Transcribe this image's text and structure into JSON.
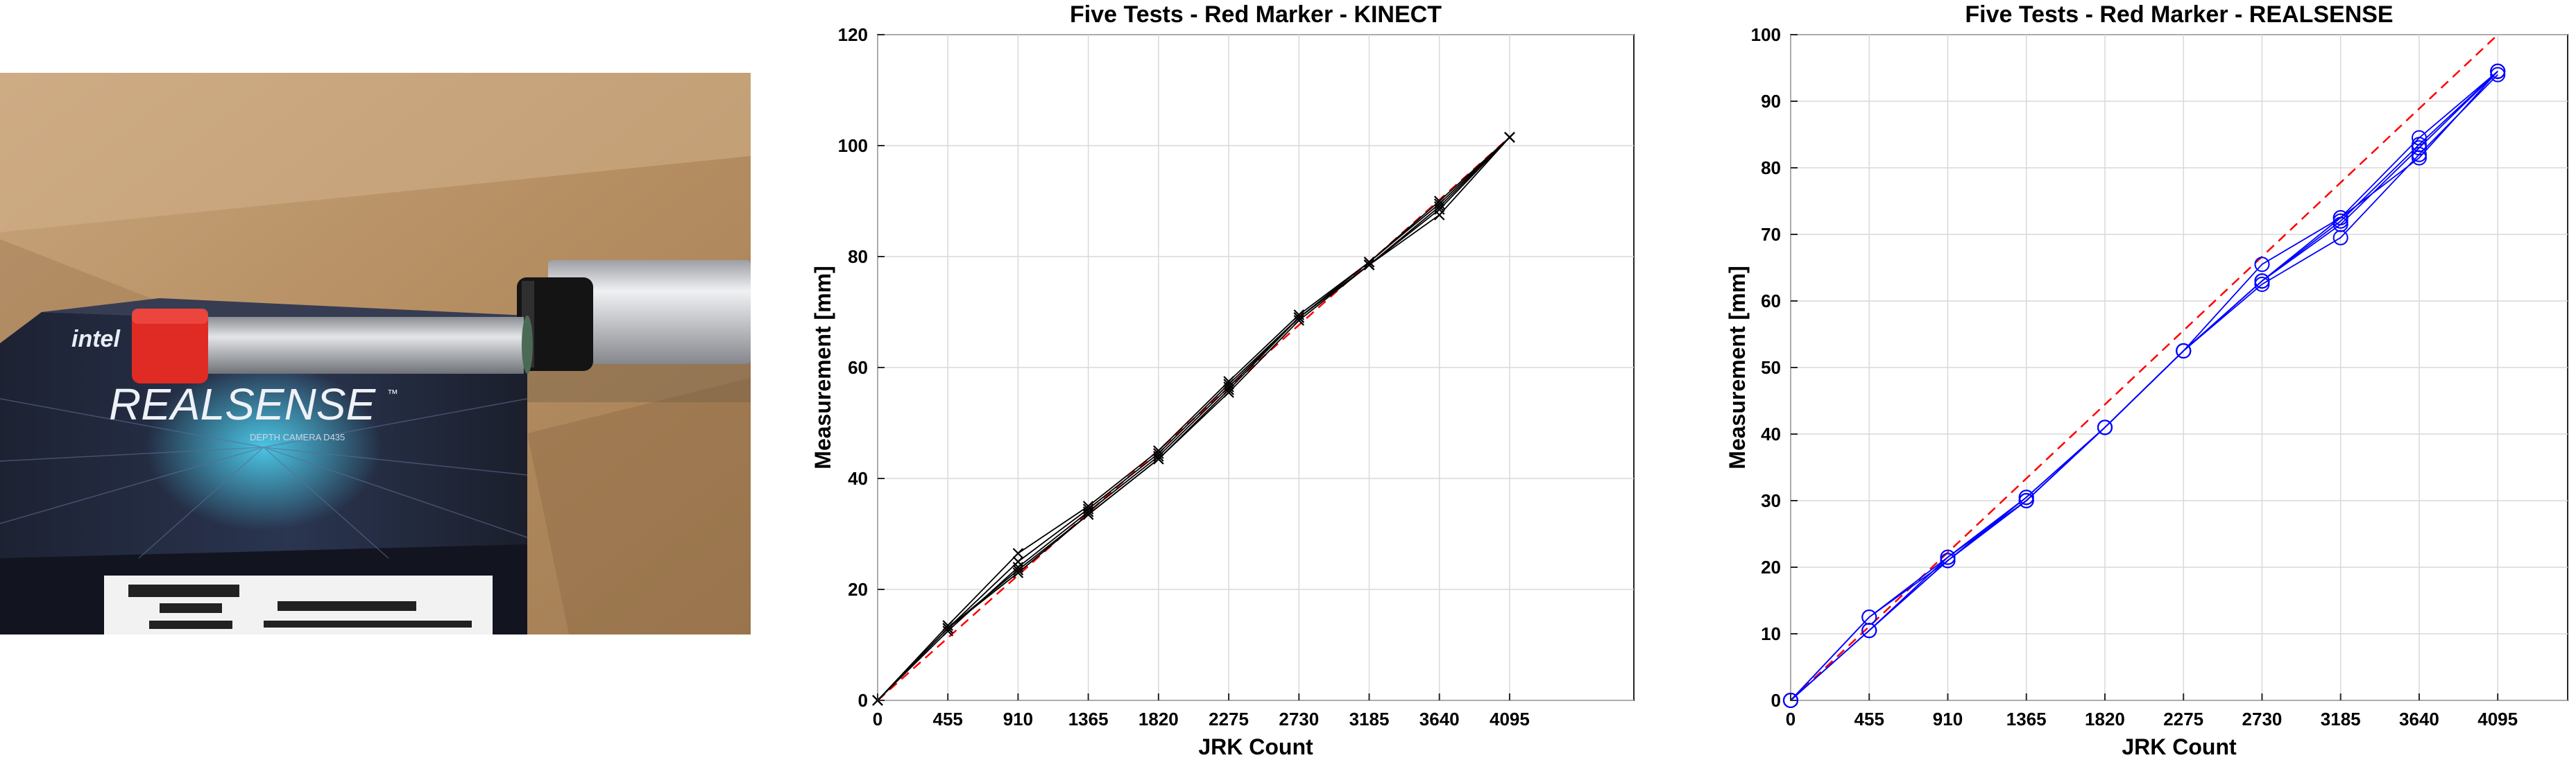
{
  "photo": {
    "brand_logo_text": "intel",
    "product_name": "REALSENSE",
    "product_trademark": "™",
    "product_subtitle": "DEPTH CAMERA D435"
  },
  "colors": {
    "kinect_series": "#000000",
    "realsense_series": "#0000ff",
    "reference_line": "#ff0000",
    "grid": "#d9d9d9",
    "axes": "#262626"
  },
  "chart_data": [
    {
      "type": "line",
      "title": "Five Tests - Red Marker - KINECT",
      "xlabel": "JRK Count",
      "ylabel": "Measurement [mm]",
      "xlim": [
        0,
        4900
      ],
      "ylim": [
        0,
        120
      ],
      "xticks": [
        0,
        455,
        910,
        1365,
        1820,
        2275,
        2730,
        3185,
        3640,
        4095
      ],
      "yticks": [
        0,
        20,
        40,
        60,
        80,
        100,
        120
      ],
      "grid": true,
      "marker": "x",
      "x": [
        0,
        455,
        910,
        1365,
        1820,
        2275,
        2730,
        3185,
        3640,
        4095
      ],
      "series": [
        {
          "values": [
            0,
            13.5,
            26.5,
            35.0,
            45.0,
            57.5,
            69.5,
            79.0,
            90.0,
            101.5
          ]
        },
        {
          "values": [
            0,
            13.0,
            25.0,
            34.5,
            44.5,
            57.0,
            69.0,
            79.0,
            89.5,
            101.5
          ]
        },
        {
          "values": [
            0,
            12.5,
            24.0,
            34.0,
            44.0,
            56.5,
            69.0,
            78.5,
            89.0,
            101.5
          ]
        },
        {
          "values": [
            0,
            13.0,
            23.5,
            33.5,
            43.5,
            56.0,
            69.0,
            78.5,
            88.5,
            101.5
          ]
        },
        {
          "values": [
            0,
            13.0,
            23.0,
            33.5,
            43.5,
            55.5,
            68.5,
            78.5,
            87.5,
            101.5
          ]
        }
      ],
      "reference_line": {
        "x": [
          0,
          4095
        ],
        "y": [
          0,
          101.5
        ],
        "style": "dashed"
      }
    },
    {
      "type": "line",
      "title": "Five Tests - Red Marker - REALSENSE",
      "xlabel": "JRK Count",
      "ylabel": "Measurement [mm]",
      "xlim": [
        0,
        4500
      ],
      "ylim": [
        0,
        100
      ],
      "xticks": [
        0,
        455,
        910,
        1365,
        1820,
        2275,
        2730,
        3185,
        3640,
        4095
      ],
      "yticks": [
        0,
        10,
        20,
        30,
        40,
        50,
        60,
        70,
        80,
        90,
        100
      ],
      "grid": true,
      "marker": "o",
      "x": [
        0,
        455,
        910,
        1365,
        1820,
        2275,
        2730,
        3185,
        3640,
        4095
      ],
      "series": [
        {
          "values": [
            0,
            12.5,
            21.5,
            30.5,
            41.0,
            52.5,
            65.5,
            72.5,
            84.5,
            94.5
          ]
        },
        {
          "values": [
            0,
            12.5,
            21.0,
            30.5,
            41.0,
            52.5,
            63.0,
            72.0,
            83.5,
            94.5
          ]
        },
        {
          "values": [
            0,
            10.5,
            21.5,
            30.0,
            41.0,
            52.5,
            63.0,
            71.5,
            83.0,
            94.5
          ]
        },
        {
          "values": [
            0,
            10.5,
            21.0,
            30.0,
            41.0,
            52.5,
            62.5,
            69.5,
            82.0,
            94.0
          ]
        },
        {
          "values": [
            0,
            10.5,
            21.0,
            30.0,
            41.0,
            52.5,
            63.0,
            72.5,
            81.5,
            94.5
          ]
        }
      ],
      "reference_line": {
        "x": [
          0,
          4095
        ],
        "y": [
          0,
          100
        ],
        "style": "dashed"
      }
    }
  ]
}
